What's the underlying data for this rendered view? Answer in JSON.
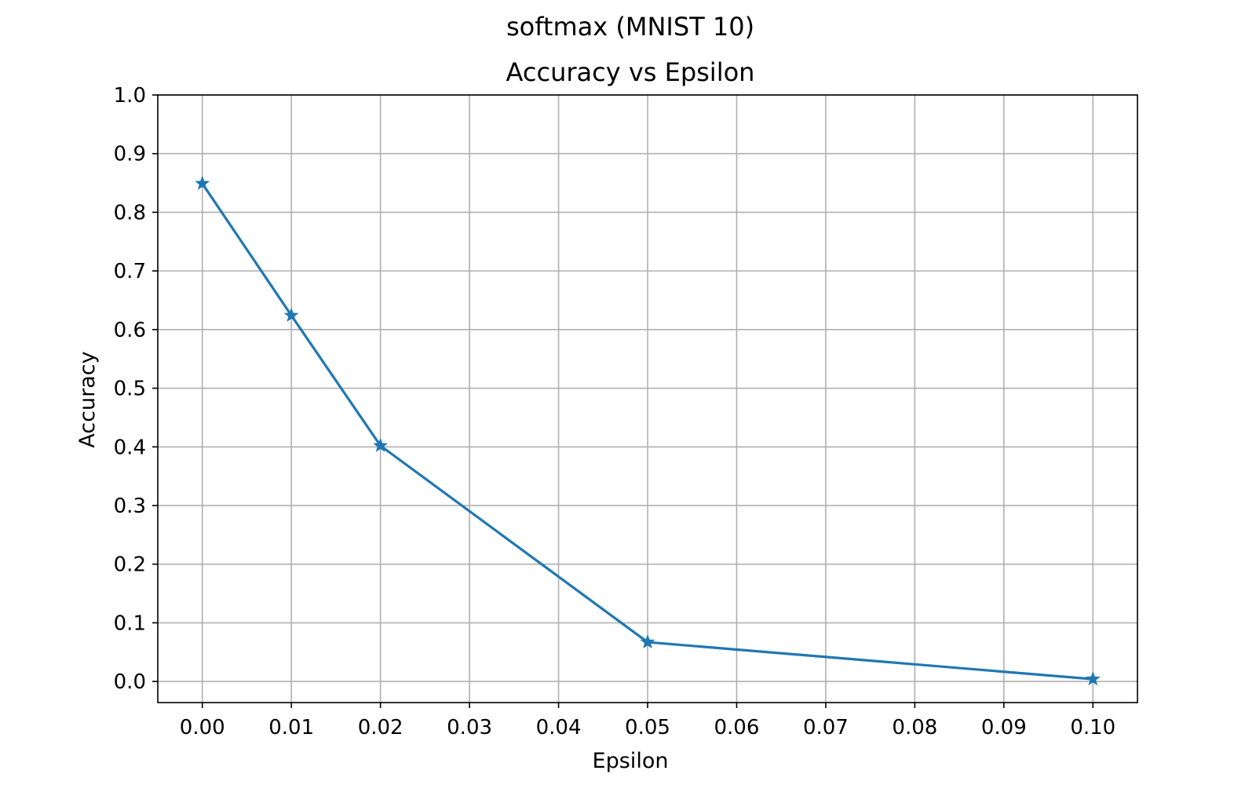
{
  "chart_data": {
    "type": "line",
    "suptitle": "softmax (MNIST 10)",
    "title": "Accuracy vs Epsilon",
    "xlabel": "Epsilon",
    "ylabel": "Accuracy",
    "x": [
      0.0,
      0.01,
      0.02,
      0.05,
      0.1
    ],
    "series": [
      {
        "values": [
          0.849,
          0.624,
          0.402,
          0.067,
          0.004
        ],
        "color": "#1f77b4",
        "marker": "star"
      }
    ],
    "xlim": [
      -0.005,
      0.105
    ],
    "ylim": [
      -0.036,
      1.0
    ],
    "xticks": [
      0.0,
      0.01,
      0.02,
      0.03,
      0.04,
      0.05,
      0.06,
      0.07,
      0.08,
      0.09,
      0.1
    ],
    "xtick_labels": [
      "0.00",
      "0.01",
      "0.02",
      "0.03",
      "0.04",
      "0.05",
      "0.06",
      "0.07",
      "0.08",
      "0.09",
      "0.10"
    ],
    "yticks": [
      0.0,
      0.1,
      0.2,
      0.3,
      0.4,
      0.5,
      0.6,
      0.7,
      0.8,
      0.9,
      1.0
    ],
    "ytick_labels": [
      "0.0",
      "0.1",
      "0.2",
      "0.3",
      "0.4",
      "0.5",
      "0.6",
      "0.7",
      "0.8",
      "0.9",
      "1.0"
    ],
    "grid": true,
    "legend": false
  }
}
